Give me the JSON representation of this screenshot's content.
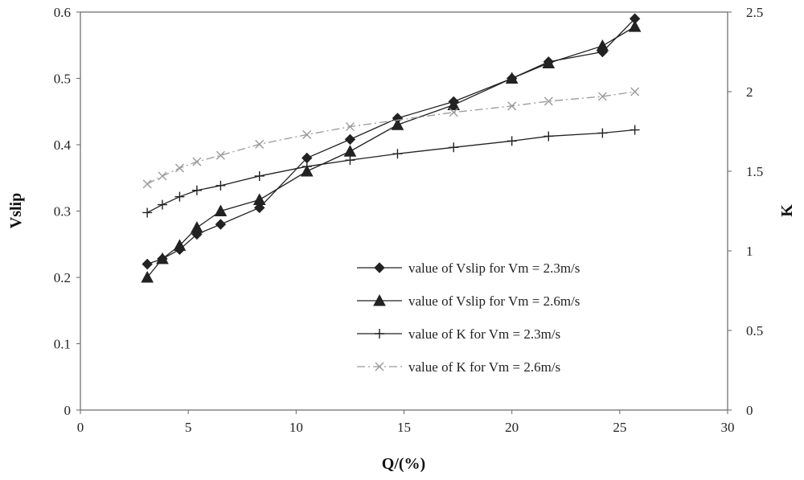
{
  "chart_data": {
    "type": "line",
    "title": "",
    "xlabel": "Q/(%)",
    "ylabel": "Vslip",
    "y2label": "K",
    "xlim": [
      0,
      30
    ],
    "ylim": [
      0,
      0.6
    ],
    "y2lim": [
      0,
      2.5
    ],
    "x_ticks": [
      "0",
      "5",
      "10",
      "15",
      "20",
      "25",
      "30"
    ],
    "y_ticks": [
      "0",
      "0.1",
      "0.2",
      "0.3",
      "0.4",
      "0.5",
      "0.6"
    ],
    "y2_ticks": [
      "0",
      "0.5",
      "1",
      "1.5",
      "2",
      "2.5"
    ],
    "legend_position": "lower-right",
    "series": [
      {
        "name": "value of Vslip for Vm = 2.3m/s",
        "axis": "left",
        "marker": "diamond",
        "line": "solid",
        "color": "#222222",
        "x": [
          3.1,
          3.8,
          4.6,
          5.4,
          6.5,
          8.3,
          10.5,
          12.5,
          14.7,
          17.3,
          20.0,
          21.7,
          24.2,
          25.7
        ],
        "y": [
          0.22,
          0.228,
          0.242,
          0.265,
          0.28,
          0.305,
          0.38,
          0.408,
          0.44,
          0.465,
          0.5,
          0.525,
          0.54,
          0.59
        ]
      },
      {
        "name": "value of Vslip for Vm = 2.6m/s",
        "axis": "left",
        "marker": "triangle",
        "line": "solid",
        "color": "#222222",
        "x": [
          3.1,
          3.8,
          4.6,
          5.4,
          6.5,
          8.3,
          10.5,
          12.5,
          14.7,
          17.3,
          20.0,
          21.7,
          24.2,
          25.7
        ],
        "y": [
          0.2,
          0.228,
          0.248,
          0.275,
          0.3,
          0.317,
          0.36,
          0.39,
          0.43,
          0.46,
          0.5,
          0.523,
          0.549,
          0.578
        ]
      },
      {
        "name": "value of K for Vm = 2.3m/s",
        "axis": "right",
        "marker": "plus",
        "line": "solid",
        "color": "#222222",
        "x": [
          3.1,
          3.8,
          4.6,
          5.4,
          6.5,
          8.3,
          10.5,
          12.5,
          14.7,
          17.3,
          20.0,
          21.7,
          24.2,
          25.7
        ],
        "y": [
          1.24,
          1.29,
          1.34,
          1.38,
          1.41,
          1.47,
          1.53,
          1.57,
          1.61,
          1.65,
          1.69,
          1.72,
          1.74,
          1.76
        ]
      },
      {
        "name": "value of K for Vm = 2.6m/s",
        "axis": "right",
        "marker": "x",
        "line": "dashdot",
        "color": "#999999",
        "x": [
          3.1,
          3.8,
          4.6,
          5.4,
          6.5,
          8.3,
          10.5,
          12.5,
          17.3,
          20.0,
          21.7,
          24.2,
          25.7
        ],
        "y": [
          1.42,
          1.47,
          1.52,
          1.56,
          1.6,
          1.67,
          1.73,
          1.78,
          1.87,
          1.91,
          1.94,
          1.97,
          2.0
        ]
      }
    ]
  }
}
